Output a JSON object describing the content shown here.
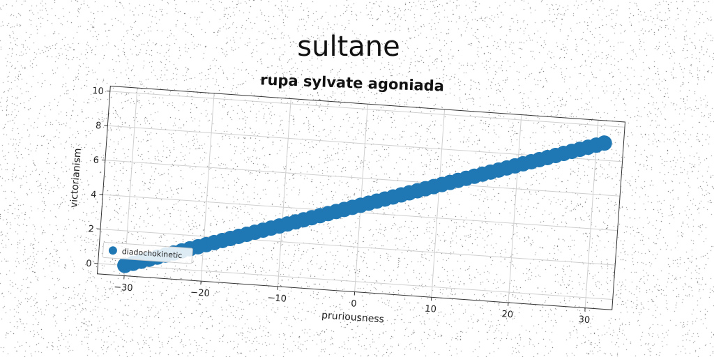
{
  "chart_data": {
    "type": "scatter",
    "title": "sultane",
    "subtitle": "rupa sylvate agoniada",
    "xlabel": "pruriousness",
    "ylabel": "victorianism",
    "xlim": [
      -33.5,
      33.5
    ],
    "ylim": [
      -0.6,
      10.3
    ],
    "xticks": [
      -30,
      -20,
      -10,
      0,
      10,
      20,
      30
    ],
    "yticks": [
      0,
      2,
      4,
      6,
      8,
      10
    ],
    "grid": true,
    "legend": {
      "position": "bottom-left",
      "entries": [
        "diadochokinetic"
      ]
    },
    "series": [
      {
        "name": "diadochokinetic",
        "color": "#1f77b4",
        "marker": "circle",
        "x_start": -30,
        "x_end": 31,
        "y_start": 0,
        "y_end": 9,
        "point_count": 60
      }
    ]
  }
}
